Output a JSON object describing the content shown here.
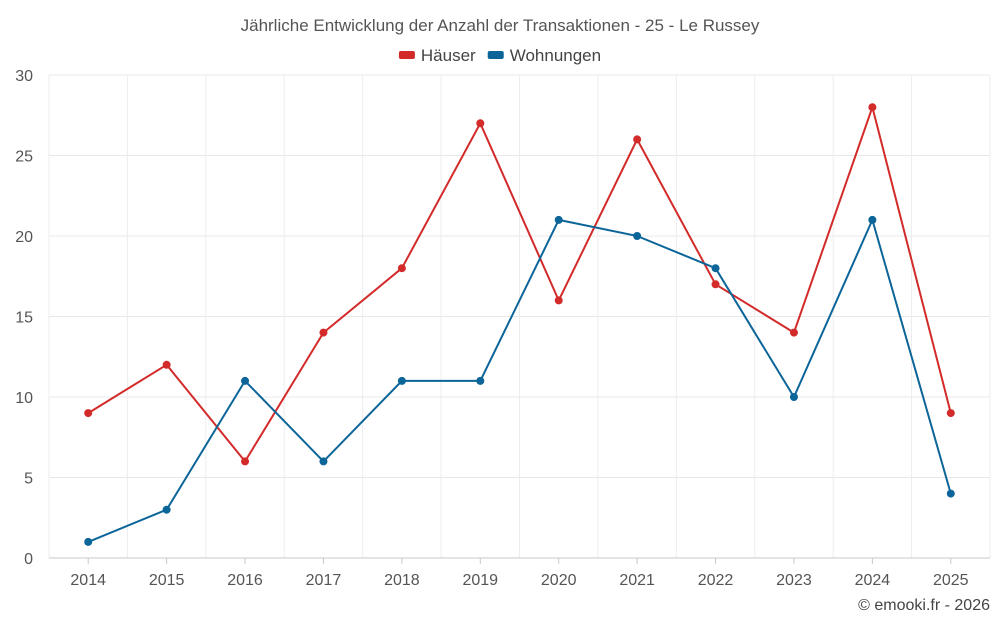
{
  "chart_data": {
    "type": "line",
    "title": "Jährliche Entwicklung der Anzahl der Transaktionen - 25 - Le Russey",
    "xlabel": "",
    "ylabel": "",
    "categories": [
      "2014",
      "2015",
      "2016",
      "2017",
      "2018",
      "2019",
      "2020",
      "2021",
      "2022",
      "2023",
      "2024",
      "2025"
    ],
    "ylim": [
      0,
      30
    ],
    "yticks": [
      "0",
      "5",
      "10",
      "15",
      "20",
      "25",
      "30"
    ],
    "grid": true,
    "legend_position": "top-center",
    "series": [
      {
        "name": "Häuser",
        "color": "#d32a2a",
        "values": [
          9,
          12,
          6,
          14,
          18,
          27,
          16,
          26,
          17,
          14,
          28,
          9
        ]
      },
      {
        "name": "Wohnungen",
        "color": "#0c6599",
        "values": [
          1,
          3,
          11,
          6,
          11,
          11,
          21,
          20,
          18,
          10,
          21,
          4
        ]
      }
    ]
  },
  "credit": "© emooki.fr - 2026"
}
